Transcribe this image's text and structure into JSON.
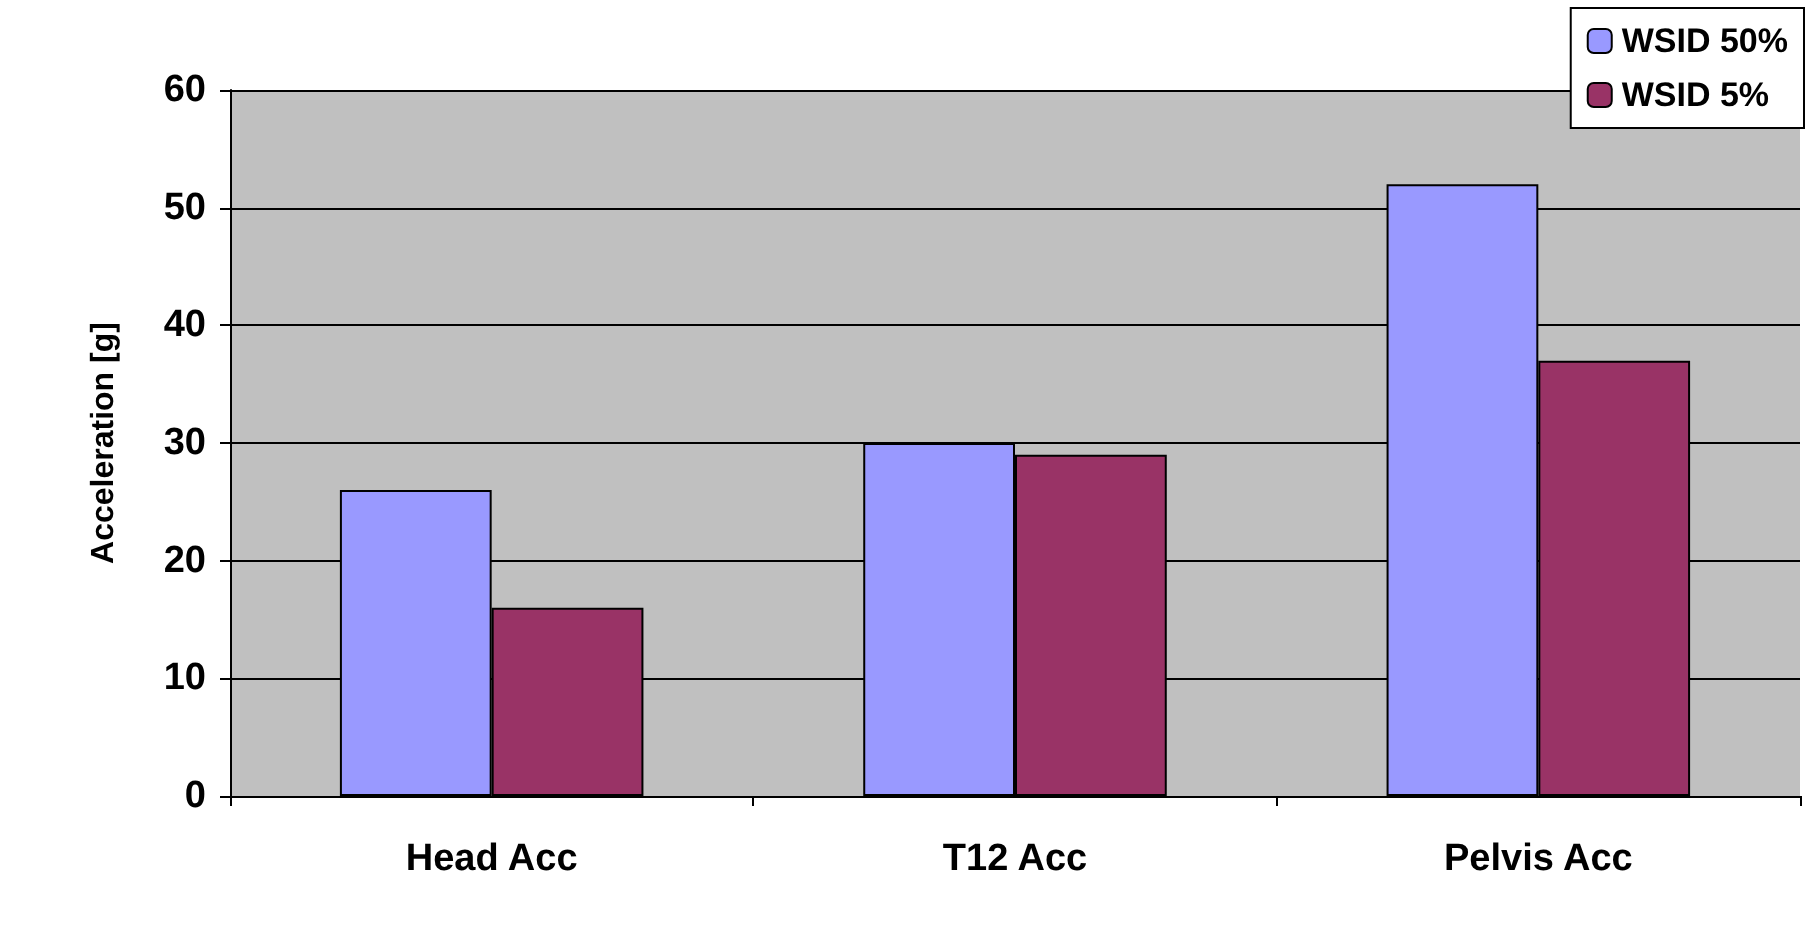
{
  "chart_data": {
    "type": "bar",
    "ylabel": "Acceleration [g]",
    "categories": [
      "Head Acc",
      "T12 Acc",
      "Pelvis Acc"
    ],
    "series": [
      {
        "name": "WSID 50%",
        "color": "#9999ff",
        "values": [
          26,
          30,
          52
        ]
      },
      {
        "name": "WSID 5%",
        "color": "#993366",
        "values": [
          16,
          29,
          37
        ]
      }
    ],
    "ylim": [
      0,
      60
    ],
    "yticks": [
      0,
      10,
      20,
      30,
      40,
      50,
      60
    ],
    "grid": "y",
    "legend": "top right"
  }
}
